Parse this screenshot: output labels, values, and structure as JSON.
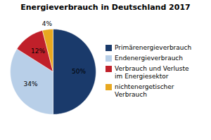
{
  "chart_data": {
    "type": "pie",
    "title": "Energieverbrauch in Deutschland 2017",
    "categories": [
      "Primärenergieverbrauch",
      "Endenergieverbrauch",
      "Verbrauch und Verluste\nim Energiesektor",
      "nichtenergetischer\nVerbrauch"
    ],
    "values": [
      50,
      34,
      12,
      4
    ],
    "value_labels": [
      "50%",
      "34%",
      "12%",
      "4%"
    ],
    "data_labels": true,
    "colors": [
      "#1a3a6b",
      "#b8cfe8",
      "#c0202a",
      "#e8a820"
    ],
    "legend": "right"
  }
}
